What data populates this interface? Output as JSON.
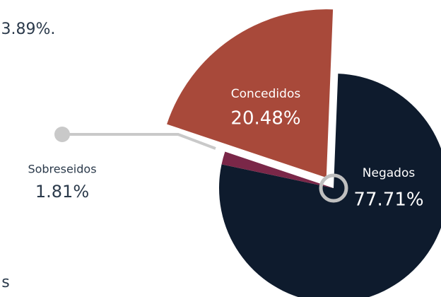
{
  "chart_data": {
    "type": "pie",
    "annotations": [
      "3.89%.",
      "s"
    ],
    "categories": [
      "Sobreseidos",
      "Concedidos",
      "Negados"
    ],
    "values": [
      1.81,
      20.48,
      77.71
    ],
    "value_labels": [
      "1.81%",
      "20.48%",
      "77.71%"
    ],
    "colors": [
      "#7a2748",
      "#a8493a",
      "#0e1b2d"
    ],
    "exploded": "Concedidos"
  }
}
